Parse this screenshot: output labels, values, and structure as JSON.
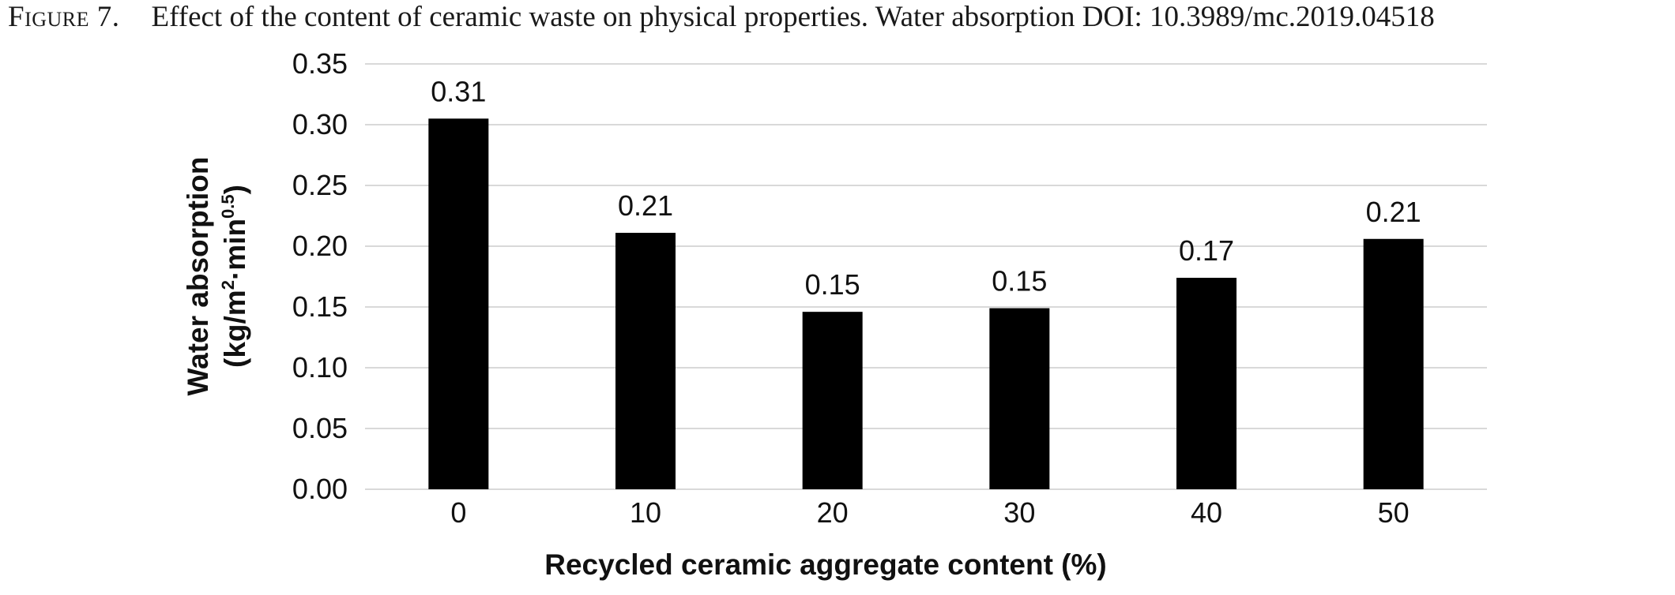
{
  "caption": {
    "label": "Figure 7.",
    "text": "Effect of the content of ceramic waste on physical properties. Water absorption DOI: 10.3989/mc.2019.04518"
  },
  "chart_data": {
    "type": "bar",
    "categories": [
      "0",
      "10",
      "20",
      "30",
      "40",
      "50"
    ],
    "values": [
      0.305,
      0.211,
      0.146,
      0.149,
      0.174,
      0.206
    ],
    "data_labels": [
      "0.31",
      "0.21",
      "0.15",
      "0.15",
      "0.17",
      "0.21"
    ],
    "xlabel": "Recycled ceramic aggregate content (%)",
    "ylabel_line1": "Water absorption",
    "ylabel_line2_prefix": "(kg/m",
    "ylabel_sup1": "2",
    "ylabel_line2_mid": "·min",
    "ylabel_sup2": "0.5",
    "ylabel_line2_suffix": ")",
    "ylim": [
      0,
      0.35
    ],
    "yticks": [
      "0.00",
      "0.05",
      "0.10",
      "0.15",
      "0.20",
      "0.25",
      "0.30",
      "0.35"
    ],
    "grid": true,
    "legend": false,
    "bar_color": "#000000",
    "grid_color": "#d9d9d9"
  }
}
